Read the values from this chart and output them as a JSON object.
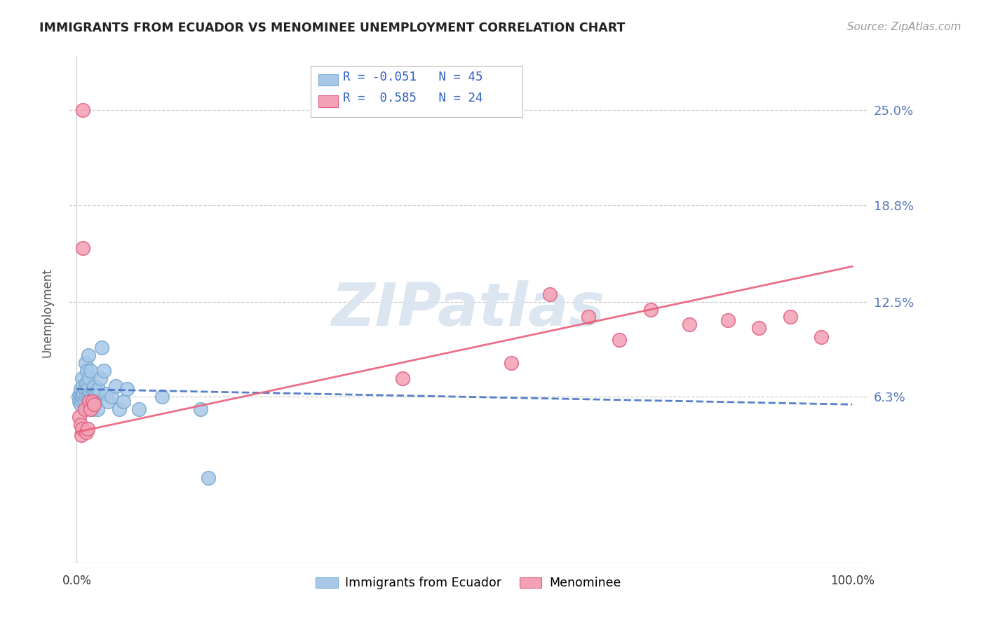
{
  "title": "IMMIGRANTS FROM ECUADOR VS MENOMINEE UNEMPLOYMENT CORRELATION CHART",
  "source": "Source: ZipAtlas.com",
  "ylabel": "Unemployment",
  "ytick_labels": [
    "6.3%",
    "12.5%",
    "18.8%",
    "25.0%"
  ],
  "ytick_values": [
    0.063,
    0.125,
    0.188,
    0.25
  ],
  "xlim": [
    -0.01,
    1.02
  ],
  "ylim": [
    -0.045,
    0.285
  ],
  "legend_series": [
    "Immigrants from Ecuador",
    "Menominee"
  ],
  "blue_color": "#a8c8e8",
  "pink_color": "#f4a0b5",
  "blue_edge_color": "#7aaad0",
  "pink_edge_color": "#e06080",
  "blue_line_color": "#4472c4",
  "pink_line_color": "#e8607a",
  "watermark_color": "#d8e4f0",
  "blue_R": -0.051,
  "blue_N": 45,
  "pink_R": 0.585,
  "pink_N": 24,
  "blue_line": [
    0.0,
    0.068,
    1.0,
    0.058
  ],
  "pink_line": [
    0.0,
    0.04,
    1.0,
    0.148
  ],
  "blue_scatter_x": [
    0.002,
    0.003,
    0.004,
    0.005,
    0.005,
    0.006,
    0.007,
    0.007,
    0.008,
    0.008,
    0.009,
    0.01,
    0.01,
    0.011,
    0.012,
    0.012,
    0.013,
    0.014,
    0.015,
    0.015,
    0.016,
    0.017,
    0.018,
    0.019,
    0.02,
    0.021,
    0.022,
    0.023,
    0.025,
    0.027,
    0.028,
    0.03,
    0.032,
    0.035,
    0.038,
    0.04,
    0.045,
    0.05,
    0.055,
    0.06,
    0.065,
    0.08,
    0.11,
    0.16,
    0.17
  ],
  "blue_scatter_y": [
    0.063,
    0.06,
    0.065,
    0.058,
    0.068,
    0.063,
    0.06,
    0.075,
    0.063,
    0.07,
    0.065,
    0.06,
    0.068,
    0.085,
    0.063,
    0.072,
    0.08,
    0.068,
    0.063,
    0.09,
    0.075,
    0.065,
    0.08,
    0.063,
    0.055,
    0.068,
    0.07,
    0.06,
    0.065,
    0.055,
    0.068,
    0.075,
    0.095,
    0.08,
    0.065,
    0.06,
    0.063,
    0.07,
    0.055,
    0.06,
    0.068,
    0.055,
    0.063,
    0.055,
    0.01
  ],
  "pink_scatter_x": [
    0.003,
    0.005,
    0.006,
    0.007,
    0.008,
    0.01,
    0.012,
    0.014,
    0.016,
    0.018,
    0.02,
    0.022,
    0.008,
    0.42,
    0.56,
    0.61,
    0.66,
    0.7,
    0.74,
    0.79,
    0.84,
    0.88,
    0.92,
    0.96
  ],
  "pink_scatter_y": [
    0.05,
    0.045,
    0.038,
    0.042,
    0.16,
    0.055,
    0.04,
    0.042,
    0.06,
    0.055,
    0.06,
    0.058,
    0.25,
    0.075,
    0.085,
    0.13,
    0.115,
    0.1,
    0.12,
    0.11,
    0.113,
    0.108,
    0.115,
    0.102
  ]
}
